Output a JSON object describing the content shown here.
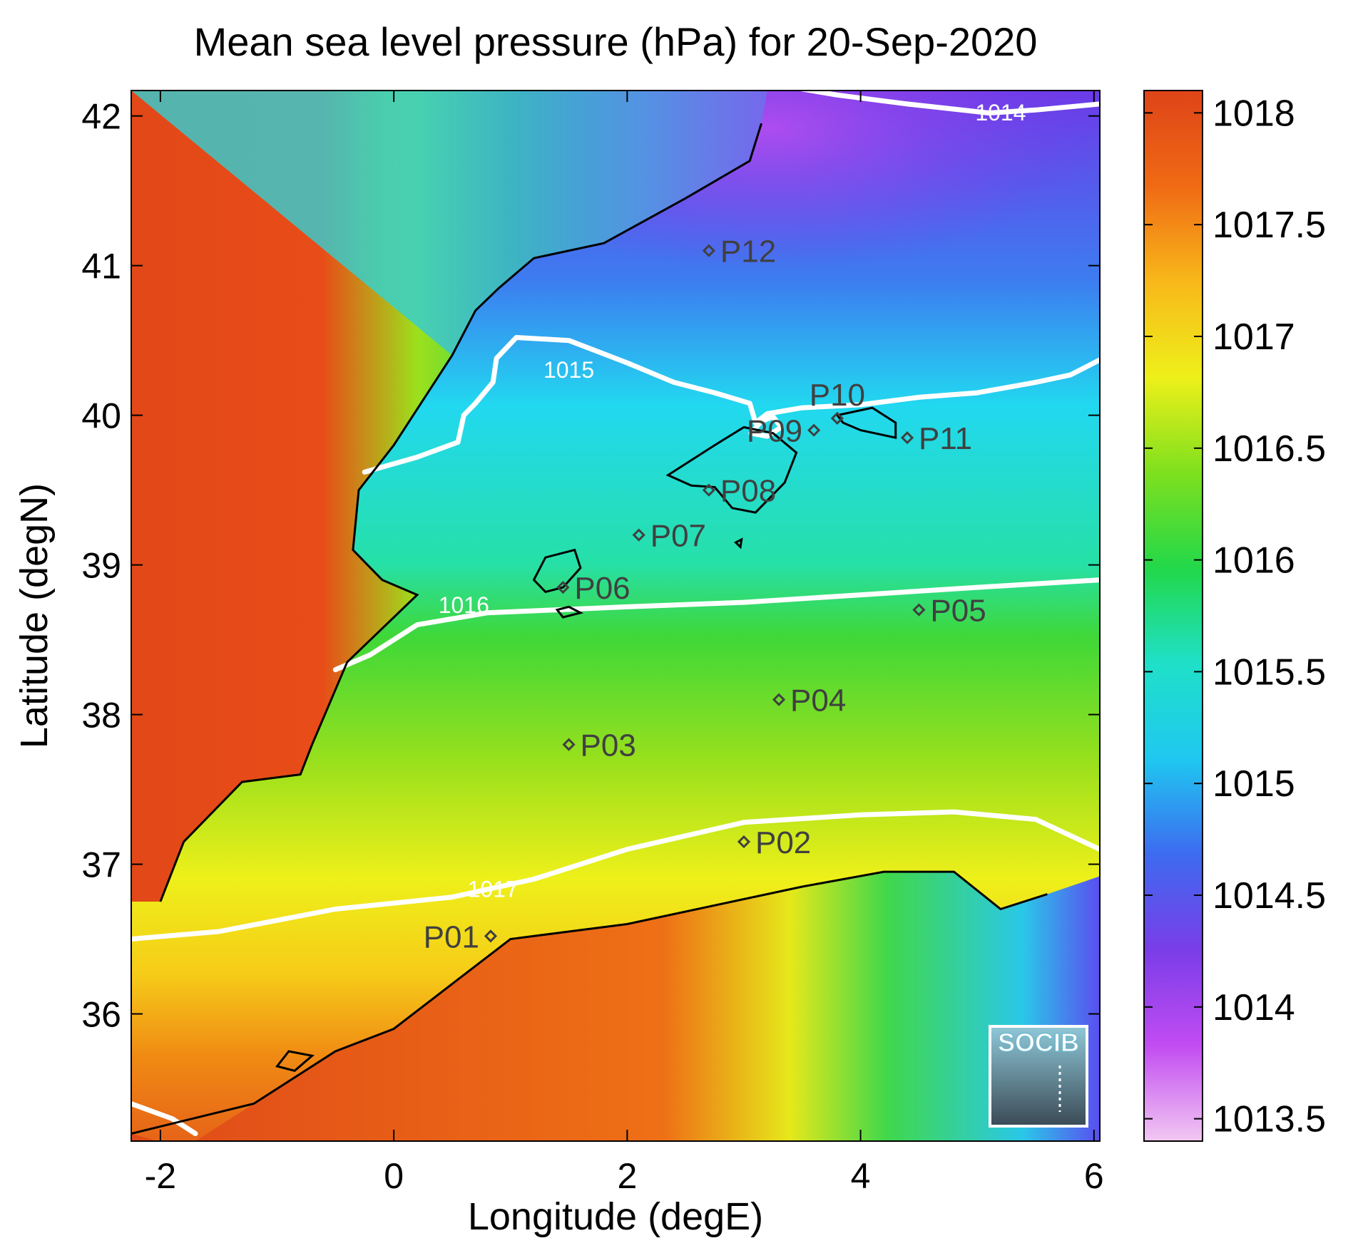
{
  "title": "Mean sea level pressure (hPa) for 20-Sep-2020",
  "x_axis": {
    "label": "Longitude (degE)",
    "range": [
      -2.25,
      6.05
    ],
    "ticks": [
      {
        "value": -2,
        "label": "-2"
      },
      {
        "value": 0,
        "label": "0"
      },
      {
        "value": 2,
        "label": "2"
      },
      {
        "value": 4,
        "label": "4"
      },
      {
        "value": 6,
        "label": "6"
      }
    ]
  },
  "y_axis": {
    "label": "Latitude (degN)",
    "range": [
      35.15,
      42.17
    ],
    "ticks": [
      {
        "value": 36,
        "label": "36"
      },
      {
        "value": 37,
        "label": "37"
      },
      {
        "value": 38,
        "label": "38"
      },
      {
        "value": 39,
        "label": "39"
      },
      {
        "value": 40,
        "label": "40"
      },
      {
        "value": 41,
        "label": "41"
      },
      {
        "value": 42,
        "label": "42"
      }
    ]
  },
  "colorbar": {
    "range": [
      1013.4,
      1018.1
    ],
    "ticks": [
      {
        "value": 1013.5,
        "label": "1013.5"
      },
      {
        "value": 1014,
        "label": "1014"
      },
      {
        "value": 1014.5,
        "label": "1014.5"
      },
      {
        "value": 1015,
        "label": "1015"
      },
      {
        "value": 1015.5,
        "label": "1015.5"
      },
      {
        "value": 1016,
        "label": "1016"
      },
      {
        "value": 1016.5,
        "label": "1016.5"
      },
      {
        "value": 1017,
        "label": "1017"
      },
      {
        "value": 1017.5,
        "label": "1017.5"
      },
      {
        "value": 1018,
        "label": "1018"
      }
    ],
    "colors": [
      "#f2c8f2",
      "#c24cf2",
      "#7a3de8",
      "#3d6bf0",
      "#1fc8f0",
      "#1fe0c8",
      "#22d84a",
      "#7ee01e",
      "#eef01a",
      "#f8b81a",
      "#f06a14",
      "#de4418"
    ]
  },
  "contours": [
    {
      "label": "1014",
      "points": [
        [
          3.5,
          42.18
        ],
        [
          3.8,
          42.14
        ],
        [
          4.4,
          42.08
        ],
        [
          5.1,
          42.02
        ],
        [
          5.5,
          42.04
        ],
        [
          6.05,
          42.08
        ]
      ],
      "label_at": [
        5.2,
        41.97
      ]
    },
    {
      "label": "1015",
      "points": [
        [
          -0.25,
          39.62
        ],
        [
          0.2,
          39.72
        ],
        [
          0.55,
          39.82
        ],
        [
          0.6,
          40.0
        ],
        [
          0.7,
          40.08
        ],
        [
          0.85,
          40.22
        ],
        [
          0.88,
          40.38
        ],
        [
          1.05,
          40.52
        ],
        [
          1.5,
          40.5
        ],
        [
          2.0,
          40.35
        ],
        [
          2.4,
          40.22
        ],
        [
          2.75,
          40.15
        ],
        [
          3.05,
          40.08
        ],
        [
          3.1,
          39.95
        ],
        [
          3.2,
          40.01
        ],
        [
          3.5,
          40.05
        ],
        [
          4.0,
          40.07
        ],
        [
          4.5,
          40.12
        ],
        [
          5.0,
          40.15
        ],
        [
          5.5,
          40.22
        ],
        [
          5.8,
          40.27
        ],
        [
          6.05,
          40.37
        ]
      ],
      "label_at": [
        1.5,
        40.25
      ]
    },
    {
      "label": "1015",
      "points": [
        [
          3.06,
          39.88
        ],
        [
          3.15,
          39.96
        ],
        [
          3.25,
          39.99
        ],
        [
          3.32,
          39.92
        ],
        [
          3.2,
          39.86
        ],
        [
          3.06,
          39.88
        ]
      ],
      "label_at": null
    },
    {
      "label": "1016",
      "points": [
        [
          -0.5,
          38.3
        ],
        [
          -0.2,
          38.4
        ],
        [
          0.2,
          38.6
        ],
        [
          0.8,
          38.68
        ],
        [
          1.4,
          38.7
        ],
        [
          2.0,
          38.72
        ],
        [
          3.0,
          38.75
        ],
        [
          4.0,
          38.8
        ],
        [
          5.0,
          38.85
        ],
        [
          6.05,
          38.9
        ]
      ],
      "label_at": [
        0.6,
        38.68
      ]
    },
    {
      "label": "1017",
      "points": [
        [
          -2.25,
          36.5
        ],
        [
          -1.5,
          36.55
        ],
        [
          -0.5,
          36.7
        ],
        [
          0.5,
          36.78
        ],
        [
          1.2,
          36.9
        ],
        [
          2.0,
          37.1
        ],
        [
          3.0,
          37.28
        ],
        [
          4.0,
          37.33
        ],
        [
          4.8,
          37.35
        ],
        [
          5.5,
          37.3
        ],
        [
          6.05,
          37.1
        ]
      ],
      "label_at": [
        0.85,
        36.78
      ]
    },
    {
      "label": "1015",
      "points": [
        [
          -2.25,
          35.4
        ],
        [
          -1.9,
          35.3
        ],
        [
          -1.7,
          35.2
        ]
      ],
      "label_at": null
    }
  ],
  "stations": [
    {
      "name": "P01",
      "lon": 0.83,
      "lat": 36.52,
      "label_side": "left"
    },
    {
      "name": "P02",
      "lon": 3.0,
      "lat": 37.15,
      "label_side": "right"
    },
    {
      "name": "P03",
      "lon": 1.5,
      "lat": 37.8,
      "label_side": "right"
    },
    {
      "name": "P04",
      "lon": 3.3,
      "lat": 38.1,
      "label_side": "right"
    },
    {
      "name": "P05",
      "lon": 4.5,
      "lat": 38.7,
      "label_side": "right"
    },
    {
      "name": "P06",
      "lon": 1.45,
      "lat": 38.85,
      "label_side": "right"
    },
    {
      "name": "P07",
      "lon": 2.1,
      "lat": 39.2,
      "label_side": "right"
    },
    {
      "name": "P08",
      "lon": 2.7,
      "lat": 39.5,
      "label_side": "right"
    },
    {
      "name": "P09",
      "lon": 3.6,
      "lat": 39.9,
      "label_side": "left"
    },
    {
      "name": "P10",
      "lon": 3.8,
      "lat": 39.98,
      "label_side": "above"
    },
    {
      "name": "P11",
      "lon": 4.4,
      "lat": 39.85,
      "label_side": "right"
    },
    {
      "name": "P12",
      "lon": 2.7,
      "lat": 41.1,
      "label_side": "right"
    }
  ],
  "land_pressure_field": {
    "iberia_polygon": [
      [
        -2.25,
        42.17
      ],
      [
        3.2,
        42.17
      ],
      [
        3.15,
        41.95
      ],
      [
        3.05,
        41.7
      ],
      [
        2.5,
        41.45
      ],
      [
        1.8,
        41.15
      ],
      [
        1.2,
        41.05
      ],
      [
        0.9,
        40.85
      ],
      [
        0.7,
        40.7
      ],
      [
        0.5,
        40.4
      ],
      [
        0.25,
        40.1
      ],
      [
        0.0,
        39.8
      ],
      [
        -0.3,
        39.5
      ],
      [
        -0.35,
        39.1
      ],
      [
        -0.1,
        38.9
      ],
      [
        0.2,
        38.8
      ],
      [
        -0.4,
        38.35
      ],
      [
        -0.7,
        37.8
      ],
      [
        -0.8,
        37.6
      ],
      [
        -1.3,
        37.55
      ],
      [
        -1.8,
        37.15
      ],
      [
        -2.0,
        36.75
      ],
      [
        -2.25,
        36.75
      ]
    ],
    "africa_polygon": [
      [
        -2.25,
        35.2
      ],
      [
        -1.8,
        35.1
      ],
      [
        -1.2,
        35.4
      ],
      [
        -0.5,
        35.75
      ],
      [
        0.0,
        35.9
      ],
      [
        0.5,
        36.2
      ],
      [
        1.0,
        36.5
      ],
      [
        2.0,
        36.6
      ],
      [
        2.9,
        36.75
      ],
      [
        3.5,
        36.85
      ],
      [
        4.2,
        36.95
      ],
      [
        4.8,
        36.95
      ],
      [
        5.2,
        36.7
      ],
      [
        5.6,
        36.8
      ],
      [
        6.05,
        36.92
      ],
      [
        6.05,
        35.15
      ],
      [
        -2.25,
        35.15
      ]
    ]
  },
  "logo": {
    "text": "SOCIB"
  }
}
